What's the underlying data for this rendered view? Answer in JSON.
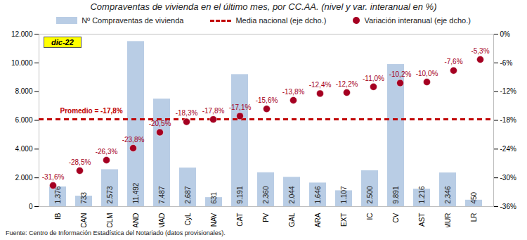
{
  "chart_data": {
    "type": "bar",
    "title": "Compraventas de vivienda en el último mes, por CC.AA. (nivel y var. interanual en %)",
    "categories": [
      "IB",
      "CAN",
      "CLM",
      "AND",
      "MAD",
      "CyL",
      "NAV",
      "CAT",
      "PV",
      "GAL",
      "ARA",
      "EXT",
      "IC",
      "CV",
      "AST",
      "MUR",
      "LR"
    ],
    "series": [
      {
        "name": "Nº Compraventas de vivienda",
        "type": "bar",
        "color": "#b9cde5",
        "values": [
          1376,
          733,
          2573,
          11492,
          7487,
          2687,
          631,
          9191,
          2360,
          2044,
          1646,
          1107,
          2500,
          9891,
          1216,
          2346,
          450
        ],
        "value_labels": [
          "1.376",
          "733",
          "2.573",
          "11.492",
          "7.487",
          "2.687",
          "631",
          "9.191",
          "2.360",
          "2.044",
          "1.646",
          "1.107",
          "2.500",
          "9.891",
          "1.216",
          "2.346",
          "450"
        ]
      },
      {
        "name": "Media nacional (eje dcho.)",
        "type": "line",
        "line_style": "dashed",
        "color": "#c00000",
        "axis": "y2",
        "values": [
          -17.8,
          -17.8,
          -17.8,
          -17.8,
          -17.8,
          -17.8,
          -17.8,
          -17.8,
          -17.8,
          -17.8,
          -17.8,
          -17.8,
          -17.8,
          -17.8,
          -17.8,
          -17.8,
          -17.8
        ]
      },
      {
        "name": "Variación interanual (eje dcho.)",
        "type": "scatter",
        "marker": "circle",
        "color": "#a50021",
        "axis": "y2",
        "values": [
          -31.6,
          -28.5,
          -26.3,
          -23.8,
          -20.5,
          -18.3,
          -17.8,
          -17.1,
          -15.6,
          -13.8,
          -12.4,
          -12.2,
          -11.0,
          -10.2,
          -10.0,
          -7.6,
          -5.3
        ],
        "value_labels": [
          "-31,6%",
          "-28,5%",
          "-26,3%",
          "-23,8%",
          "-20,5%",
          "-18,3%",
          "-17,8%",
          "-17,1%",
          "-15,6%",
          "-13,8%",
          "-12,4%",
          "-12,2%",
          "-11,0%",
          "-10,2%",
          "-10,0%",
          "-7,6%",
          "-5,3%"
        ]
      }
    ],
    "ylim": [
      0,
      12000
    ],
    "yticks": [
      0,
      {
        "value": 2000,
        "label": "2.000"
      },
      {
        "value": 4000,
        "label": "4.000"
      },
      {
        "value": 6000,
        "label": "6.000"
      },
      {
        "value": 8000,
        "label": "8.000"
      },
      {
        "value": 10000,
        "label": "10.000"
      },
      {
        "value": 12000,
        "label": "12.000"
      }
    ],
    "y2lim": [
      -36,
      0
    ],
    "y2ticks": [
      {
        "value": -36,
        "label": "-36%"
      },
      {
        "value": -30,
        "label": "-30%"
      },
      {
        "value": -24,
        "label": "-24%"
      },
      {
        "value": -18,
        "label": "-18%"
      },
      {
        "value": -12,
        "label": "-12%"
      },
      {
        "value": -6,
        "label": "-6%"
      },
      {
        "value": 0,
        "label": "0%"
      }
    ],
    "data_labels": true,
    "legend": "top",
    "annotations": [
      "dic-22",
      "Promedio = -17,8%"
    ],
    "source": "Fuente: Centro de Información Estadística del Notariado (datos provisionales)."
  }
}
